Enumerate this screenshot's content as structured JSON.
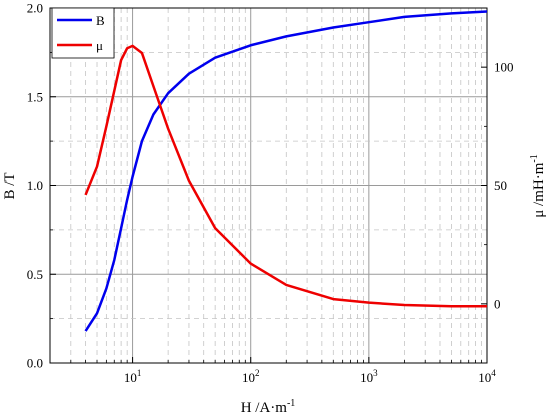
{
  "chart_data": {
    "type": "line",
    "xlabel_base": "H /A·m",
    "xlabel_sup": "-1",
    "ylabel_left": "B /T",
    "ylabel_right_base": "μ /mH·m",
    "ylabel_right_sup": "-1",
    "x_scale": "log",
    "xlim": [
      2,
      10000
    ],
    "ylim_left": [
      0,
      2.0
    ],
    "ylim_right": [
      -25,
      125
    ],
    "x_ticks": [
      {
        "value": 10,
        "base": "10",
        "exp": "1"
      },
      {
        "value": 100,
        "base": "10",
        "exp": "2"
      },
      {
        "value": 1000,
        "base": "10",
        "exp": "3"
      },
      {
        "value": 10000,
        "base": "10",
        "exp": "4"
      }
    ],
    "y_left_ticks": [
      {
        "value": 0.0,
        "label": "0.0"
      },
      {
        "value": 0.5,
        "label": "0.5"
      },
      {
        "value": 1.0,
        "label": "1.0"
      },
      {
        "value": 1.5,
        "label": "1.5"
      },
      {
        "value": 2.0,
        "label": "2.0"
      }
    ],
    "y_right_ticks": [
      {
        "value": 0,
        "label": "0"
      },
      {
        "value": 50,
        "label": "50"
      },
      {
        "value": 100,
        "label": "100"
      }
    ],
    "grid": "major and minor (log x), dashed minor",
    "legend_position": "top-left",
    "series": [
      {
        "name": "B",
        "axis": "left",
        "color": "#0000ee",
        "x": [
          4,
          5,
          6,
          7,
          8,
          9,
          10,
          12,
          15,
          20,
          30,
          50,
          100,
          200,
          500,
          1000,
          2000,
          5000,
          10000
        ],
        "y": [
          0.18,
          0.28,
          0.42,
          0.58,
          0.76,
          0.92,
          1.05,
          1.25,
          1.4,
          1.52,
          1.63,
          1.72,
          1.79,
          1.84,
          1.89,
          1.92,
          1.95,
          1.97,
          1.98
        ]
      },
      {
        "name": "μ",
        "axis": "right",
        "color": "#ee0000",
        "x": [
          4,
          5,
          6,
          7,
          8,
          9,
          10,
          12,
          15,
          20,
          30,
          50,
          100,
          200,
          500,
          1000,
          2000,
          5000,
          10000
        ],
        "y": [
          46,
          58,
          75,
          90,
          103,
          108,
          109,
          106,
          92,
          74,
          52,
          32,
          17,
          8,
          2,
          0.5,
          -0.5,
          -1,
          -1
        ]
      }
    ]
  }
}
